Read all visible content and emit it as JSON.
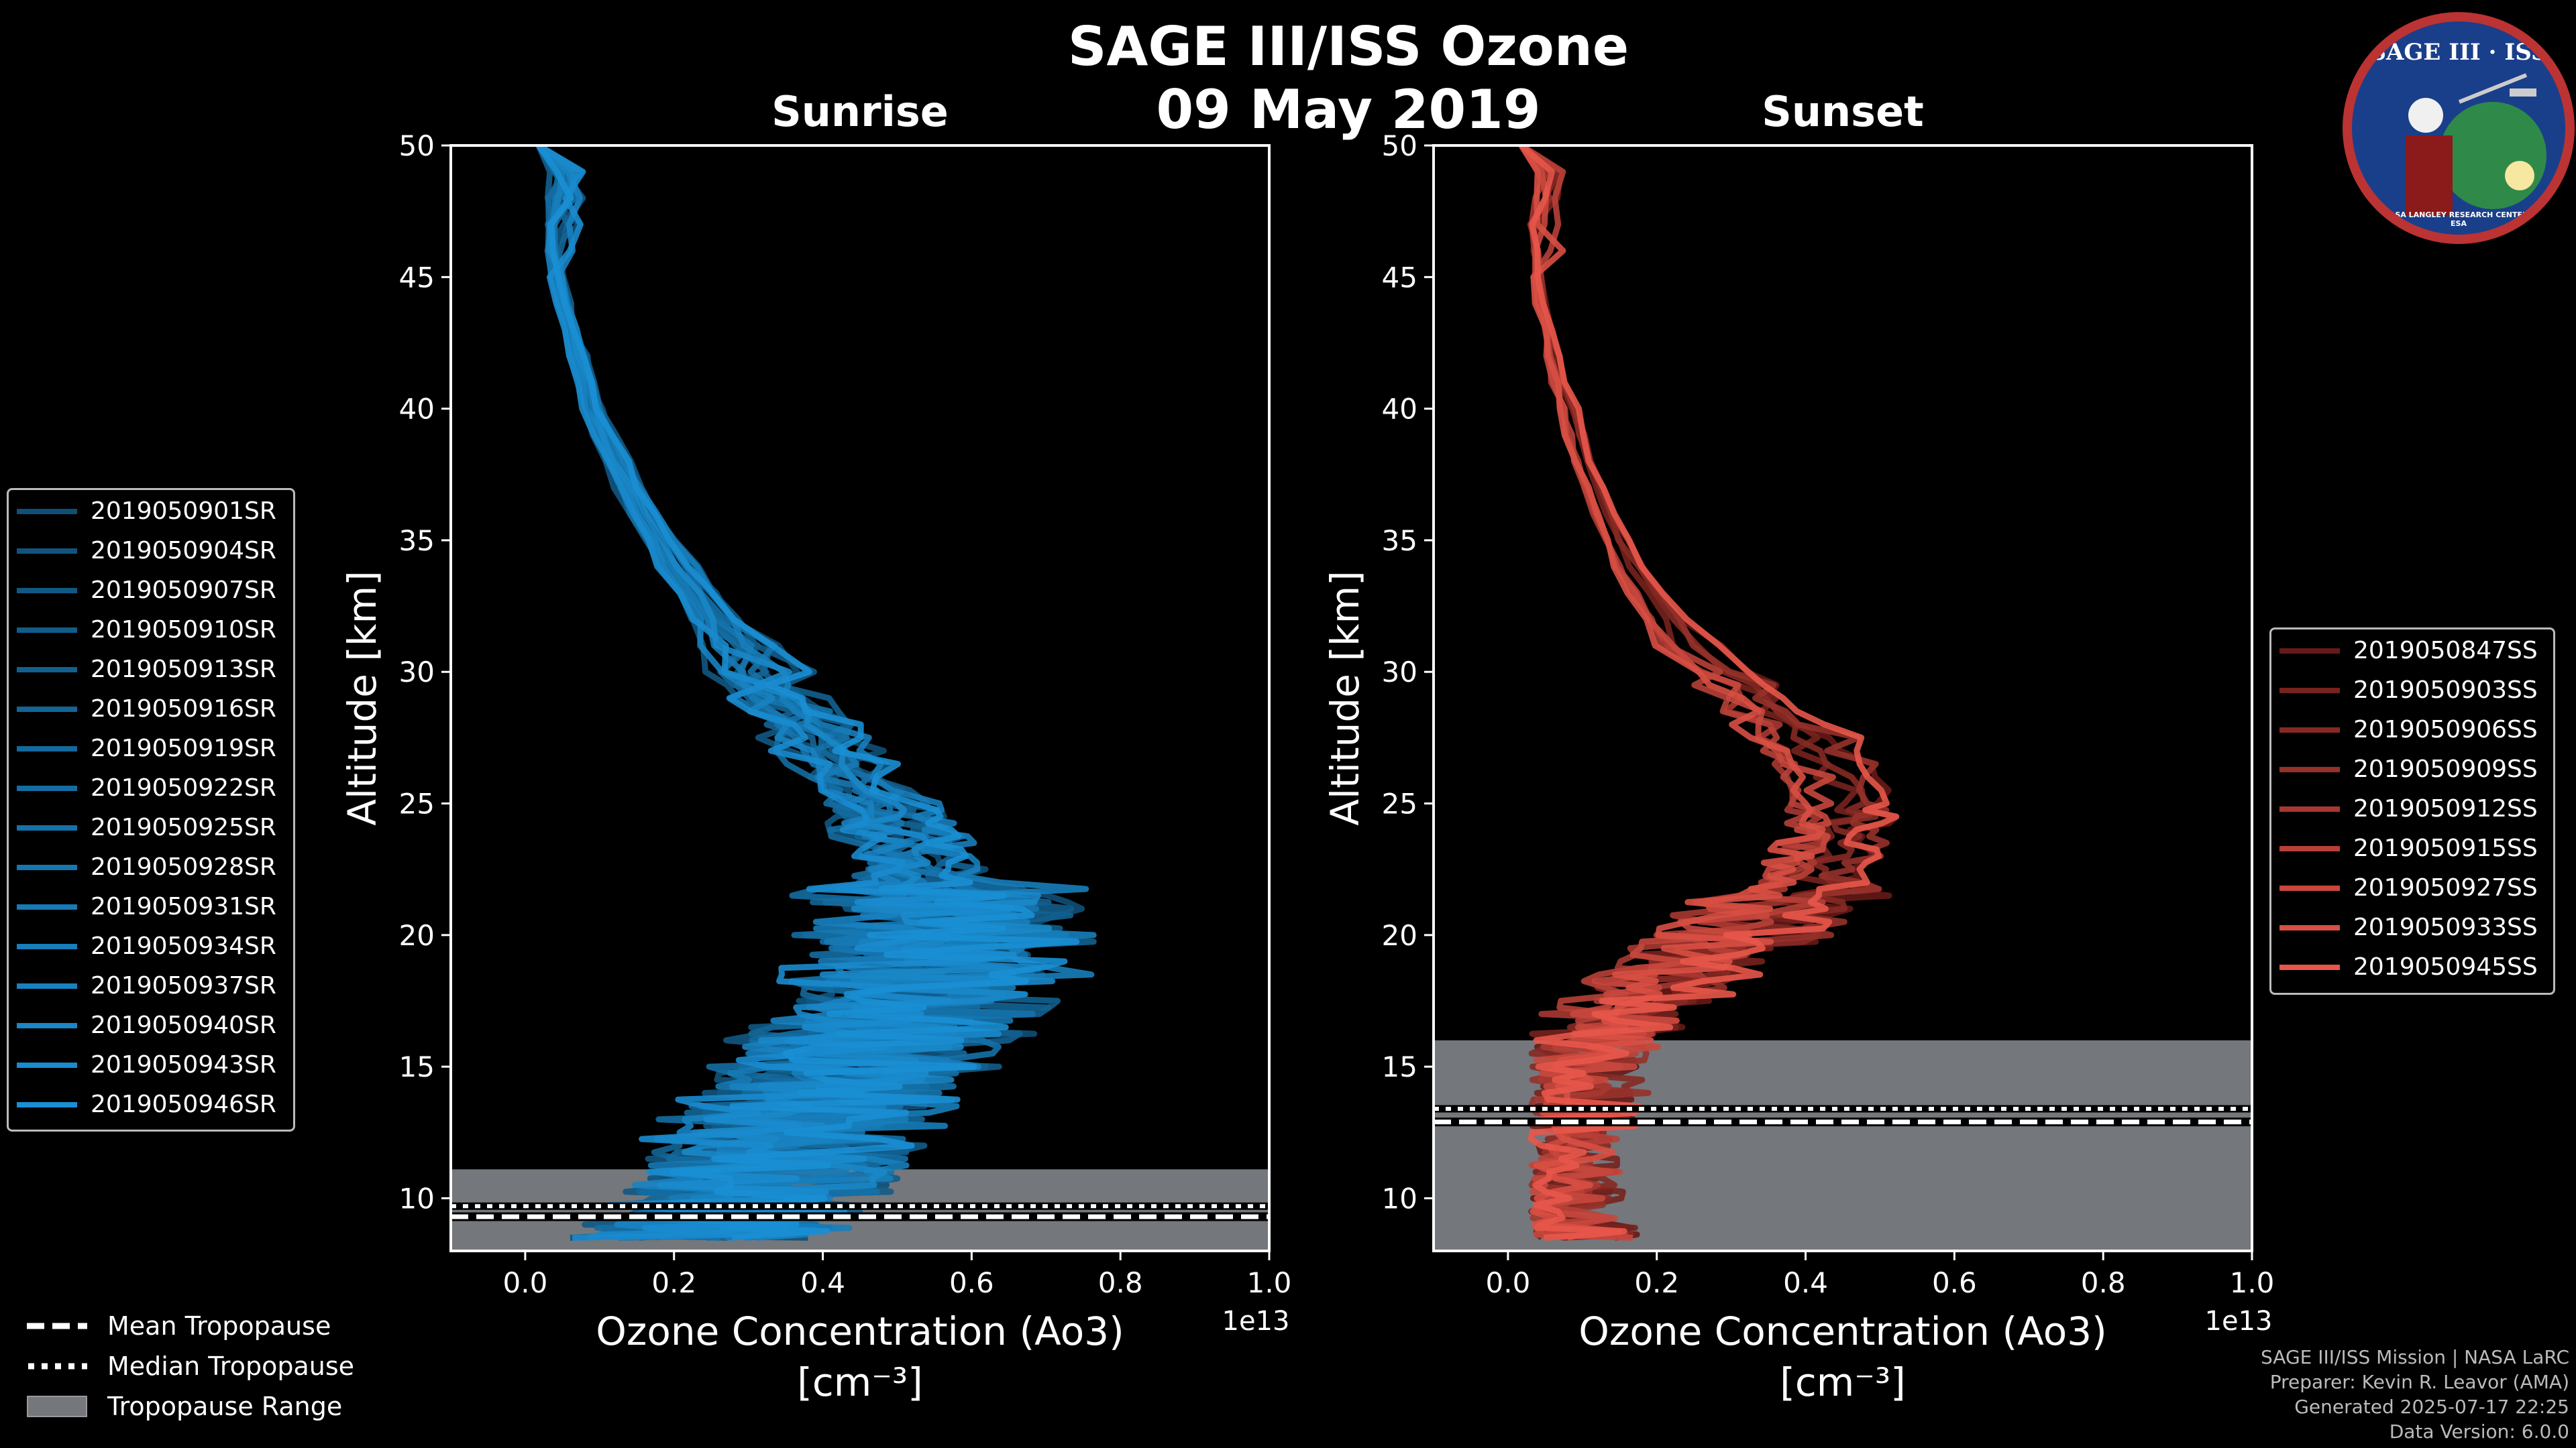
{
  "title": {
    "line1": "SAGE III/ISS Ozone",
    "line2": "09 May 2019"
  },
  "colors": {
    "sunrise": "#1a8fd4",
    "sunrise_dark": "#0c3a58",
    "sunset": "#e8564a",
    "sunset_dark": "#3a0606",
    "trop_range": "#74777c",
    "axis": "#ffffff"
  },
  "badge": {
    "title": "SAGE III · ISS",
    "ring": "BALL · NASA LANGLEY RESEARCH CENTER · TAS-I · ESA"
  },
  "legend_sunrise": [
    "2019050901SR",
    "2019050904SR",
    "2019050907SR",
    "2019050910SR",
    "2019050913SR",
    "2019050916SR",
    "2019050919SR",
    "2019050922SR",
    "2019050925SR",
    "2019050928SR",
    "2019050931SR",
    "2019050934SR",
    "2019050937SR",
    "2019050940SR",
    "2019050943SR",
    "2019050946SR"
  ],
  "legend_sunset": [
    "2019050847SS",
    "2019050903SS",
    "2019050906SS",
    "2019050909SS",
    "2019050912SS",
    "2019050915SS",
    "2019050927SS",
    "2019050933SS",
    "2019050945SS"
  ],
  "trop_legend": {
    "mean": "Mean Tropopause",
    "median": "Median Tropopause",
    "range": "Tropopause Range"
  },
  "footer": [
    "SAGE III/ISS Mission | NASA LaRC",
    "Preparer: Kevin R. Leavor (AMA)",
    "Generated 2025-07-17 22:25",
    "Data Version: 6.0.0"
  ],
  "chart_data": [
    {
      "type": "line",
      "title": "Sunrise",
      "xlabel": "Ozone Concentration (Ao3)",
      "xlabel_unit": "[cm⁻³]",
      "x_offset_label": "1e13",
      "ylabel": "Altitude [km]",
      "xlim": [
        -0.1,
        1.0
      ],
      "ylim": [
        8,
        50
      ],
      "xticks": [
        0.0,
        0.2,
        0.4,
        0.6,
        0.8,
        1.0
      ],
      "xtick_labels": [
        "0.0",
        "0.2",
        "0.4",
        "0.6",
        "0.8",
        "1.0"
      ],
      "yticks": [
        10,
        15,
        20,
        25,
        30,
        35,
        40,
        45,
        50
      ],
      "tropopause": {
        "range": [
          8,
          11.1
        ],
        "mean": 9.3,
        "median": 9.7
      },
      "series_count": 16,
      "mean_profile": {
        "altitude": [
          8.5,
          9,
          10,
          11,
          12,
          13,
          14,
          15,
          16,
          17,
          18,
          19,
          20,
          21,
          22,
          23,
          24,
          25,
          26,
          27,
          28,
          29,
          30,
          32,
          34,
          36,
          38,
          40,
          42,
          44,
          46,
          48,
          50
        ],
        "ozone": [
          0.22,
          0.26,
          0.3,
          0.32,
          0.34,
          0.37,
          0.4,
          0.43,
          0.46,
          0.5,
          0.53,
          0.55,
          0.56,
          0.55,
          0.53,
          0.51,
          0.49,
          0.46,
          0.43,
          0.4,
          0.37,
          0.34,
          0.31,
          0.25,
          0.2,
          0.155,
          0.12,
          0.09,
          0.07,
          0.05,
          0.035,
          0.025,
          0.018
        ]
      }
    },
    {
      "type": "line",
      "title": "Sunset",
      "xlabel": "Ozone Concentration (Ao3)",
      "xlabel_unit": "[cm⁻³]",
      "x_offset_label": "1e13",
      "ylabel": "Altitude [km]",
      "xlim": [
        -0.1,
        1.0
      ],
      "ylim": [
        8,
        50
      ],
      "xticks": [
        0.0,
        0.2,
        0.4,
        0.6,
        0.8,
        1.0
      ],
      "xtick_labels": [
        "0.0",
        "0.2",
        "0.4",
        "0.6",
        "0.8",
        "1.0"
      ],
      "yticks": [
        10,
        15,
        20,
        25,
        30,
        35,
        40,
        45,
        50
      ],
      "tropopause": {
        "range": [
          8,
          16.0
        ],
        "mean": 12.9,
        "median": 13.4
      },
      "series_count": 9,
      "mean_profile": {
        "altitude": [
          8.5,
          9,
          10,
          11,
          12,
          13,
          14,
          15,
          16,
          17,
          18,
          19,
          20,
          21,
          22,
          23,
          24,
          25,
          26,
          27,
          28,
          29,
          30,
          32,
          34,
          36,
          38,
          40,
          42,
          44,
          46,
          48,
          50
        ],
        "ozone": [
          0.08,
          0.07,
          0.06,
          0.06,
          0.06,
          0.07,
          0.08,
          0.09,
          0.12,
          0.15,
          0.19,
          0.24,
          0.3,
          0.36,
          0.4,
          0.42,
          0.44,
          0.45,
          0.44,
          0.41,
          0.37,
          0.32,
          0.28,
          0.21,
          0.16,
          0.13,
          0.1,
          0.08,
          0.06,
          0.045,
          0.035,
          0.025,
          0.018
        ]
      }
    }
  ]
}
